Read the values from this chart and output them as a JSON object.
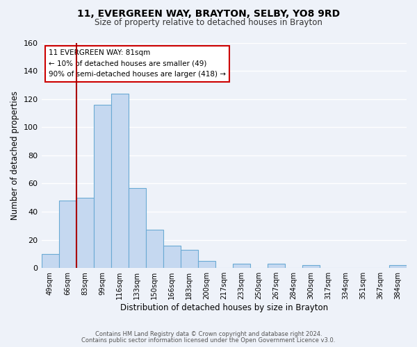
{
  "title": "11, EVERGREEN WAY, BRAYTON, SELBY, YO8 9RD",
  "subtitle": "Size of property relative to detached houses in Brayton",
  "xlabel": "Distribution of detached houses by size in Brayton",
  "ylabel": "Number of detached properties",
  "bar_labels": [
    "49sqm",
    "66sqm",
    "83sqm",
    "99sqm",
    "116sqm",
    "133sqm",
    "150sqm",
    "166sqm",
    "183sqm",
    "200sqm",
    "217sqm",
    "233sqm",
    "250sqm",
    "267sqm",
    "284sqm",
    "300sqm",
    "317sqm",
    "334sqm",
    "351sqm",
    "367sqm",
    "384sqm"
  ],
  "bar_values": [
    10,
    48,
    50,
    116,
    124,
    57,
    27,
    16,
    13,
    5,
    0,
    3,
    0,
    3,
    0,
    2,
    0,
    0,
    0,
    0,
    2
  ],
  "bar_color": "#c5d8f0",
  "bar_edge_color": "#6aaad4",
  "background_color": "#eef2f9",
  "grid_color": "#ffffff",
  "vline_color": "#aa0000",
  "annotation_lines": [
    "11 EVERGREEN WAY: 81sqm",
    "← 10% of detached houses are smaller (49)",
    "90% of semi-detached houses are larger (418) →"
  ],
  "annotation_box_edge_color": "#cc0000",
  "ylim": [
    0,
    160
  ],
  "yticks": [
    0,
    20,
    40,
    60,
    80,
    100,
    120,
    140,
    160
  ],
  "footer1": "Contains HM Land Registry data © Crown copyright and database right 2024.",
  "footer2": "Contains public sector information licensed under the Open Government Licence v3.0."
}
